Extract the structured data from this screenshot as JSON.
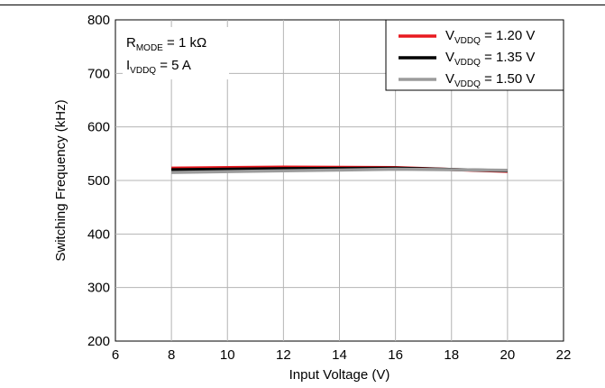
{
  "chart_data": {
    "type": "line",
    "xlabel": "Input Voltage (V)",
    "ylabel": "Switching Frequency (kHz)",
    "xlim": [
      6,
      22
    ],
    "ylim": [
      200,
      800
    ],
    "x_ticks": [
      6,
      8,
      10,
      12,
      14,
      16,
      18,
      20,
      22
    ],
    "y_ticks": [
      200,
      300,
      400,
      500,
      600,
      700,
      800
    ],
    "grid": true,
    "legend_position": "top-right",
    "annotation": {
      "line1": {
        "main": "R",
        "sub": "MODE",
        "tail": " = 1 kΩ"
      },
      "line2": {
        "main": "I",
        "sub": "VDDQ",
        "tail": " = 5 A"
      }
    },
    "series": [
      {
        "name": "V_VDDQ = 1.20 V",
        "label_main": "V",
        "label_sub": "VDDQ",
        "label_tail": " = 1.20 V",
        "color": "#e8191f",
        "x": [
          8,
          12,
          16,
          20
        ],
        "y": [
          523,
          525,
          524,
          517
        ]
      },
      {
        "name": "V_VDDQ = 1.35 V",
        "label_main": "V",
        "label_sub": "VDDQ",
        "label_tail": " = 1.35 V",
        "color": "#000000",
        "x": [
          8,
          12,
          16,
          20
        ],
        "y": [
          520,
          522,
          523,
          518
        ]
      },
      {
        "name": "V_VDDQ = 1.50 V",
        "label_main": "V",
        "label_sub": "VDDQ",
        "label_tail": " = 1.50 V",
        "color": "#9b9b9b",
        "x": [
          8,
          12,
          16,
          20
        ],
        "y": [
          515,
          518,
          521,
          519
        ]
      }
    ]
  }
}
